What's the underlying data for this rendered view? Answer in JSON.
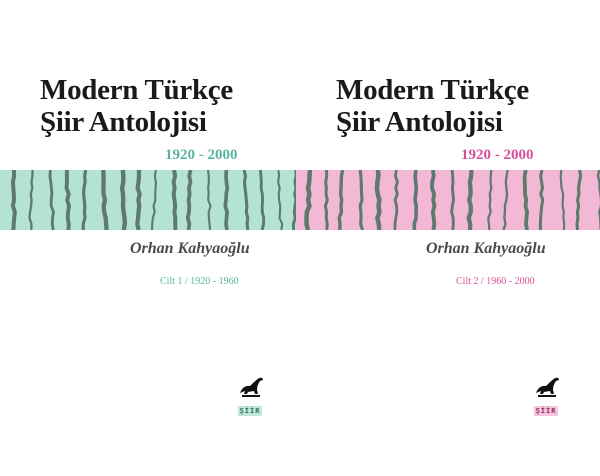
{
  "colors": {
    "mint": "#b5e3d3",
    "pink": "#f3b8d6",
    "stripe": "#5e7a6e",
    "teal_text": "#58b3a2",
    "pink_text": "#d84f9a"
  },
  "covers": [
    {
      "title_line1": "Modern Türkçe",
      "title_line2": "Şiir Antolojisi",
      "years": "1920 - 2000",
      "author": "Orhan Kahyaoğlu",
      "volume": "Cilt 1 / 1920 - 1960",
      "series_label": "ŞİİR",
      "logo_icon": "dinosaur-icon"
    },
    {
      "title_line1": "Modern Türkçe",
      "title_line2": "Şiir Antolojisi",
      "years": "1920 - 2000",
      "author": "Orhan Kahyaoğlu",
      "volume": "Cilt 2 / 1960 - 2000",
      "series_label": "ŞİİR",
      "logo_icon": "dinosaur-icon"
    }
  ]
}
